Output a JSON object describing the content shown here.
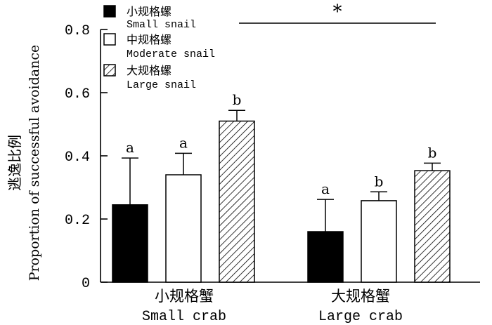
{
  "chart_data": {
    "type": "bar",
    "title": "",
    "ylabel_cn": "逃逸比例",
    "ylabel_en": "Proportion of successful avoidance",
    "ylim": [
      0,
      0.8
    ],
    "yticks": [
      "0",
      "0.2",
      "0.4",
      "0.6",
      "0.8"
    ],
    "ytick_values": [
      0,
      0.2,
      0.4,
      0.6,
      0.8
    ],
    "categories": [
      {
        "cn": "小规格蟹",
        "en": "Small crab"
      },
      {
        "cn": "大规格蟹",
        "en": "Large crab"
      }
    ],
    "series": [
      {
        "name_cn": "小规格螺",
        "name_en": "Small snail",
        "fill": "solid-black",
        "values": [
          0.245,
          0.16
        ],
        "errors": [
          0.148,
          0.102
        ],
        "letters": [
          "a",
          "a"
        ]
      },
      {
        "name_cn": "中规格螺",
        "name_en": "Moderate snail",
        "fill": "white",
        "values": [
          0.34,
          0.258
        ],
        "errors": [
          0.068,
          0.028
        ],
        "letters": [
          "a",
          "b"
        ]
      },
      {
        "name_cn": "大规格螺",
        "name_en": "Large snail",
        "fill": "diagonal-hatch",
        "values": [
          0.51,
          0.353
        ],
        "errors": [
          0.034,
          0.024
        ],
        "letters": [
          "b",
          "b"
        ]
      }
    ],
    "significance_marker": "*",
    "legend_position": "top-left"
  }
}
